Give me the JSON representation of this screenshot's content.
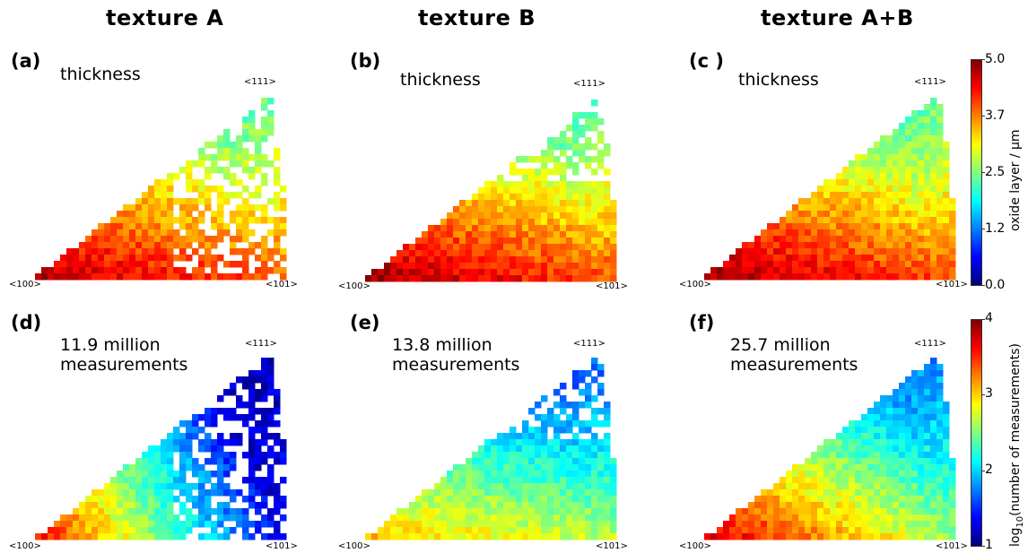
{
  "column_titles": [
    "texture A",
    "texture B",
    "texture A+B"
  ],
  "panels": [
    {
      "label": "(a)",
      "text": "thickness"
    },
    {
      "label": "(b)",
      "text": "thickness"
    },
    {
      "label": "(c )",
      "text": "thickness"
    },
    {
      "label": "(d)",
      "line1": "11.9 million",
      "line2": "measurements"
    },
    {
      "label": "(e)",
      "line1": "13.8 million",
      "line2": "measurements"
    },
    {
      "label": "(f)",
      "line1": "25.7 million",
      "line2": "measurements"
    }
  ],
  "directions": {
    "d100": "<100>",
    "d101": "<101>",
    "d111": "<111>"
  },
  "colorbars": {
    "thickness": {
      "label": "oxide layer / µm",
      "ticks": [
        "5.0",
        "3.7",
        "2.5",
        "1.2",
        "0.0"
      ],
      "range": [
        0,
        5
      ]
    },
    "counts": {
      "label_prefix": "log",
      "label_sub": "10",
      "label_suffix": "(number of measurements)",
      "ticks": [
        "4",
        "3",
        "2",
        "1"
      ],
      "range": [
        1,
        4
      ]
    }
  },
  "colormap": [
    "#00007f",
    "#0000ff",
    "#007fff",
    "#00ffff",
    "#7fff7f",
    "#ffff00",
    "#ff7f00",
    "#ff0000",
    "#7f0000"
  ],
  "chart_data": [
    {
      "type": "heatmap",
      "panel": "(a)",
      "title": "texture A",
      "quantity": "oxide layer thickness (µm)",
      "range": [
        0,
        5
      ],
      "corner_values": {
        "<100>": 4.8,
        "<111>": 1.9,
        "<101>": 3.9
      }
    },
    {
      "type": "heatmap",
      "panel": "(b)",
      "title": "texture B",
      "quantity": "oxide layer thickness (µm)",
      "range": [
        0,
        5
      ],
      "corner_values": {
        "<100>": 4.9,
        "<111>": 1.8,
        "<101>": 4.0
      }
    },
    {
      "type": "heatmap",
      "panel": "(c )",
      "title": "texture A+B",
      "quantity": "oxide layer thickness (µm)",
      "range": [
        0,
        5
      ],
      "corner_values": {
        "<100>": 4.9,
        "<111>": 1.8,
        "<101>": 4.0
      }
    },
    {
      "type": "heatmap",
      "panel": "(d)",
      "quantity": "log10(number of measurements)",
      "range": [
        1,
        4
      ],
      "total": "11.9 million",
      "corner_values": {
        "<100>": 3.7,
        "<111>": 1.2,
        "<101>": 1.3
      }
    },
    {
      "type": "heatmap",
      "panel": "(e)",
      "quantity": "log10(number of measurements)",
      "range": [
        1,
        4
      ],
      "total": "13.8 million",
      "corner_values": {
        "<100>": 3.1,
        "<111>": 1.3,
        "<101>": 2.7
      }
    },
    {
      "type": "heatmap",
      "panel": "(f)",
      "quantity": "log10(number of measurements)",
      "range": [
        1,
        4
      ],
      "total": "25.7 million",
      "corner_values": {
        "<100>": 3.8,
        "<111>": 1.5,
        "<101>": 2.6
      }
    }
  ]
}
